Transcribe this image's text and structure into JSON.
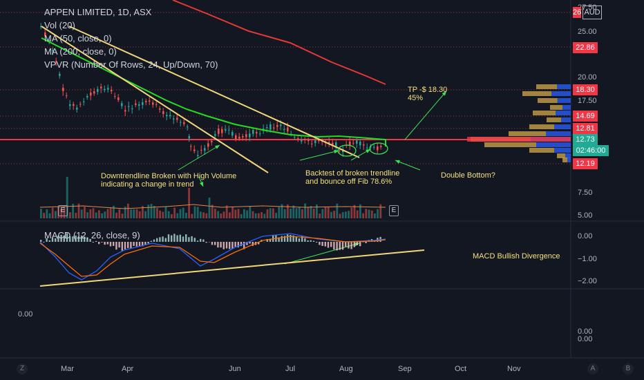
{
  "header": {
    "title": "APPEN LIMITED, 1D, ASX",
    "indicators": [
      "Vol (20)",
      "MA (50, close, 0)",
      "MA (200, close, 0)",
      "VPVR (Number Of Rows, 24, Up/Down, 70)"
    ],
    "macd_label": "MACD (12, 26, close, 9)",
    "currency": "AUD"
  },
  "price_axis": {
    "ticks": [
      "27.50",
      "25.00",
      "20.00",
      "17.50",
      "7.50",
      "5.00"
    ],
    "tags": [
      {
        "label": "26",
        "color": "#f23645"
      },
      {
        "label": "22.86",
        "color": "#f23645"
      },
      {
        "label": "18.30",
        "color": "#f23645"
      },
      {
        "label": "14.69",
        "color": "#f23645"
      },
      {
        "label": "12.81",
        "color": "#f23645"
      },
      {
        "label": "12.73",
        "color": "#22ab94"
      },
      {
        "label": "02:46:00",
        "color": "#22ab94"
      },
      {
        "label": "12.19",
        "color": "#f23645"
      }
    ]
  },
  "macd_axis": {
    "ticks": [
      "0.00",
      "−1.00",
      "−2.00"
    ]
  },
  "lower_axis": {
    "ticks": [
      "0.00",
      "0.00"
    ],
    "left_tick": "0.00"
  },
  "time_axis": {
    "labels": [
      "Mar",
      "Apr",
      "Jun",
      "Jul",
      "Aug",
      "Sep",
      "Oct",
      "Nov"
    ]
  },
  "corner_buttons": {
    "left": "Z",
    "auto": "A",
    "log": "B"
  },
  "annotations": {
    "downtrend": [
      "Downtrendline Broken with High Volume",
      "indicating a change in trend"
    ],
    "backtest": [
      "Backtest of broken trendline",
      "and bounce off Fib 78.6%"
    ],
    "double_bottom": "Double Bottom?",
    "tp": [
      "TP -$ 18.30",
      "45%"
    ],
    "macd_div": "MACD Bullish Divergence"
  },
  "events": {
    "earnings": "E",
    "earnings2": "E"
  },
  "colors": {
    "background": "#131722",
    "up": "#26a69a",
    "down": "#ef5350",
    "ma50": "#22dd22",
    "ma200": "#e53935",
    "trend": "#f2d77a",
    "annotation": "#f5e17a",
    "arrow": "#3de356"
  }
}
